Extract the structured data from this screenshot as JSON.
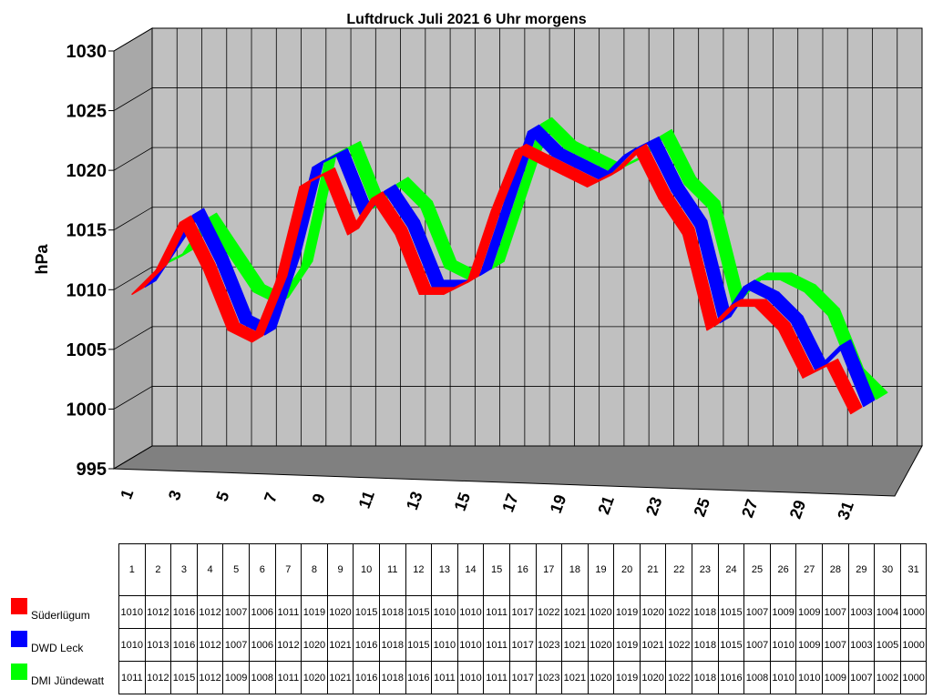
{
  "chart_data": {
    "type": "line",
    "title": "Luftdruck Juli 2021 6 Uhr morgens",
    "xlabel": "",
    "ylabel": "hPa",
    "ylim": [
      995,
      1030
    ],
    "ytick_step": 5,
    "ytick_labels": [
      "995",
      "1000",
      "1005",
      "1010",
      "1015",
      "1020",
      "1025",
      "1030"
    ],
    "xtick_labels": [
      "1",
      "3",
      "5",
      "7",
      "9",
      "11",
      "13",
      "15",
      "17",
      "19",
      "21",
      "23",
      "25",
      "27",
      "29",
      "31"
    ],
    "categories": [
      "1",
      "2",
      "3",
      "4",
      "5",
      "6",
      "7",
      "8",
      "9",
      "10",
      "11",
      "12",
      "13",
      "14",
      "15",
      "16",
      "17",
      "18",
      "19",
      "20",
      "21",
      "22",
      "23",
      "24",
      "25",
      "26",
      "27",
      "28",
      "29",
      "30",
      "31"
    ],
    "grid": true,
    "series": [
      {
        "name": "Süderlügum",
        "color": "#ff0000",
        "values": [
          1010,
          1012,
          1016,
          1012,
          1007,
          1006,
          1011,
          1019,
          1020,
          1015,
          1018,
          1015,
          1010,
          1010,
          1011,
          1017,
          1022,
          1021,
          1020,
          1019,
          1020,
          1022,
          1018,
          1015,
          1007,
          1009,
          1009,
          1007,
          1003,
          1004,
          1000
        ]
      },
      {
        "name": "DWD Leck",
        "color": "#0000ff",
        "values": [
          1010,
          1013,
          1016,
          1012,
          1007,
          1006,
          1012,
          1020,
          1021,
          1016,
          1018,
          1015,
          1010,
          1010,
          1011,
          1017,
          1023,
          1021,
          1020,
          1019,
          1021,
          1022,
          1018,
          1015,
          1007,
          1010,
          1009,
          1007,
          1003,
          1005,
          1000
        ]
      },
      {
        "name": "DMI Jündewatt",
        "color": "#00ff00",
        "values": [
          1011,
          1012,
          1015,
          1012,
          1009,
          1008,
          1011,
          1020,
          1021,
          1016,
          1018,
          1016,
          1011,
          1010,
          1011,
          1017,
          1023,
          1021,
          1020,
          1019,
          1020,
          1022,
          1018,
          1016,
          1008,
          1010,
          1010,
          1009,
          1007,
          1002,
          1000
        ]
      }
    ]
  },
  "table": {
    "header": [
      "1",
      "2",
      "3",
      "4",
      "5",
      "6",
      "7",
      "8",
      "9",
      "10",
      "11",
      "12",
      "13",
      "14",
      "15",
      "16",
      "17",
      "18",
      "19",
      "20",
      "21",
      "22",
      "23",
      "24",
      "25",
      "26",
      "27",
      "28",
      "29",
      "30",
      "31"
    ],
    "rows": [
      {
        "label": "Süderlügum",
        "color": "#ff0000",
        "cells": [
          "1010",
          "1012",
          "1016",
          "1012",
          "1007",
          "1006",
          "1011",
          "1019",
          "1020",
          "1015",
          "1018",
          "1015",
          "1010",
          "1010",
          "1011",
          "1017",
          "1022",
          "1021",
          "1020",
          "1019",
          "1020",
          "1022",
          "1018",
          "1015",
          "1007",
          "1009",
          "1009",
          "1007",
          "1003",
          "1004",
          "1000"
        ]
      },
      {
        "label": "DWD Leck",
        "color": "#0000ff",
        "cells": [
          "1010",
          "1013",
          "1016",
          "1012",
          "1007",
          "1006",
          "1012",
          "1020",
          "1021",
          "1016",
          "1018",
          "1015",
          "1010",
          "1010",
          "1011",
          "1017",
          "1023",
          "1021",
          "1020",
          "1019",
          "1021",
          "1022",
          "1018",
          "1015",
          "1007",
          "1010",
          "1009",
          "1007",
          "1003",
          "1005",
          "1000"
        ]
      },
      {
        "label": "DMI Jündewatt",
        "color": "#00ff00",
        "cells": [
          "1011",
          "1012",
          "1015",
          "1012",
          "1009",
          "1008",
          "1011",
          "1020",
          "1021",
          "1016",
          "1018",
          "1016",
          "1011",
          "1010",
          "1011",
          "1017",
          "1023",
          "1021",
          "1020",
          "1019",
          "1020",
          "1022",
          "1018",
          "1016",
          "1008",
          "1010",
          "1010",
          "1009",
          "1007",
          "1002",
          "1000"
        ]
      }
    ]
  }
}
